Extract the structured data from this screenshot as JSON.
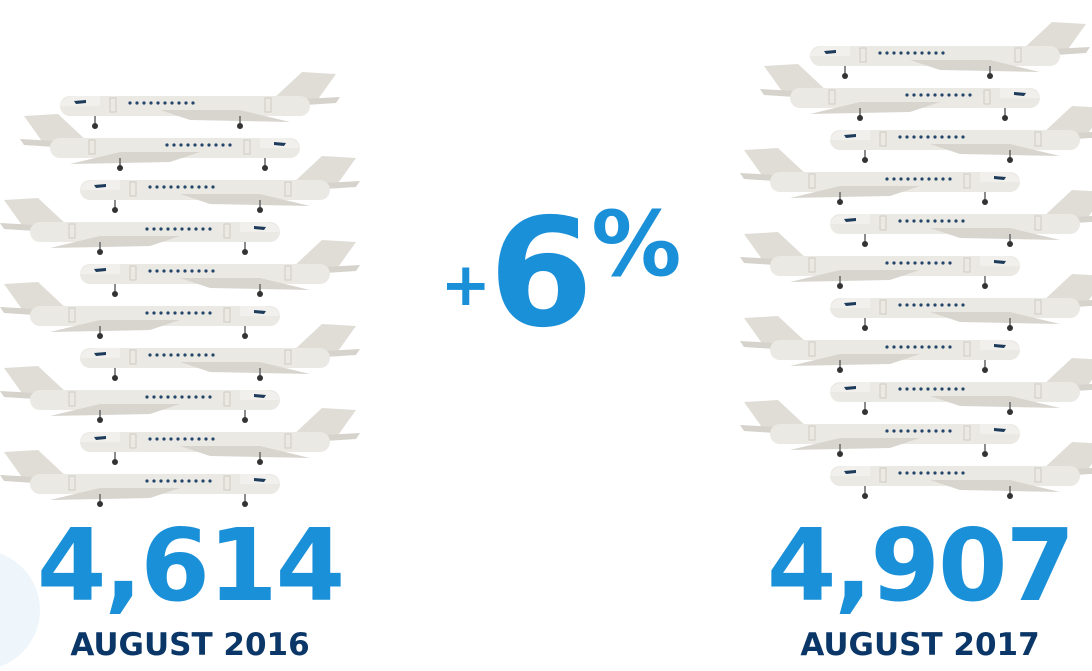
{
  "left": {
    "value": "4,614",
    "label": "AUGUST 2016"
  },
  "change": {
    "sign": "+",
    "number": "6",
    "unit": "%"
  },
  "right": {
    "value": "4,907",
    "label": "AUGUST 2017"
  }
}
